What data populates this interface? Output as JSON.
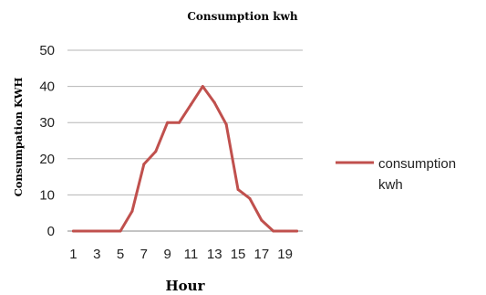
{
  "chart_data": {
    "type": "line",
    "title": "Consumption kwh",
    "xlabel": "Hour",
    "ylabel": "Consumpation KWH",
    "x": [
      1,
      2,
      3,
      4,
      5,
      6,
      7,
      8,
      9,
      10,
      11,
      12,
      13,
      14,
      15,
      16,
      17,
      18,
      19,
      20
    ],
    "xticklabels": [
      "1",
      "3",
      "5",
      "7",
      "9",
      "11",
      "13",
      "15",
      "17",
      "19"
    ],
    "ylim": [
      0,
      50
    ],
    "yticks": [
      0,
      10,
      20,
      30,
      40,
      50
    ],
    "grid": "horizontal",
    "legend_position": "right",
    "series": [
      {
        "name": "consumption kwh",
        "color": "#c0504d",
        "values": [
          0,
          0,
          0,
          0,
          0,
          5.5,
          18.5,
          22,
          30,
          30,
          35,
          40,
          35.5,
          29.5,
          11.5,
          9,
          3,
          0,
          0,
          0
        ]
      }
    ]
  },
  "legend": {
    "line1": "consumption",
    "line2": "kwh"
  }
}
